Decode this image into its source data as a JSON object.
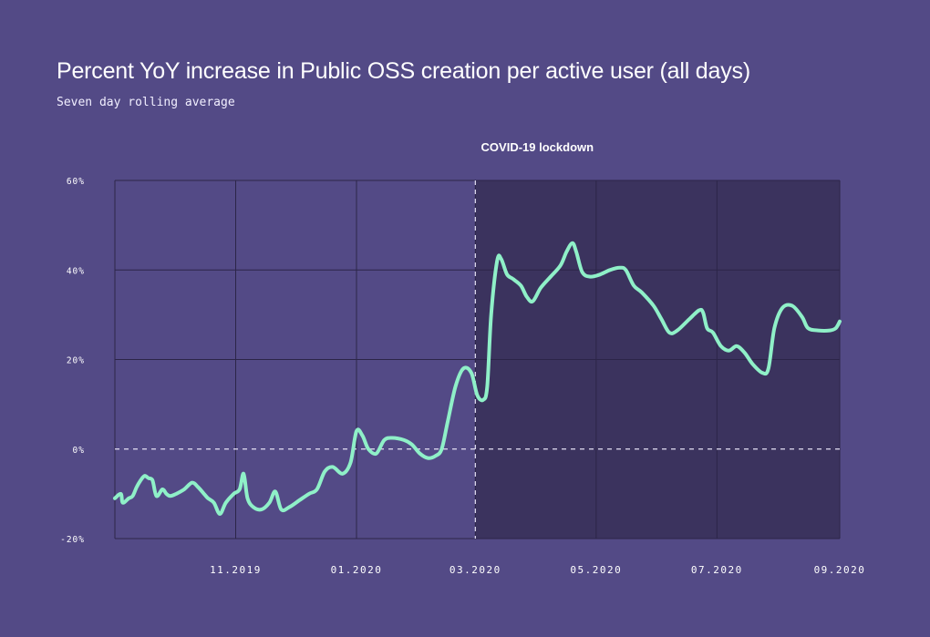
{
  "chart_data": {
    "type": "line",
    "title": "Percent YoY increase in Public OSS creation per active user (all days)",
    "subtitle": "Seven day rolling average",
    "xlabel": "",
    "ylabel": "",
    "ylim": [
      -20,
      60
    ],
    "xlim": [
      "2019-09-01",
      "2020-09-01"
    ],
    "grid": true,
    "y_ticks": [
      {
        "value": 60,
        "label": "60%"
      },
      {
        "value": 40,
        "label": "40%"
      },
      {
        "value": 20,
        "label": "20%"
      },
      {
        "value": 0,
        "label": "0%"
      },
      {
        "value": -20,
        "label": "-20%"
      }
    ],
    "x_ticks": [
      {
        "date": "2019-11-01",
        "label": "11.2019"
      },
      {
        "date": "2020-01-01",
        "label": "01.2020"
      },
      {
        "date": "2020-03-01",
        "label": "03.2020"
      },
      {
        "date": "2020-05-01",
        "label": "05.2020"
      },
      {
        "date": "2020-07-01",
        "label": "07.2020"
      },
      {
        "date": "2020-09-01",
        "label": "09.2020"
      }
    ],
    "annotation": {
      "label": "COVID-19 lockdown",
      "start": "2020-03-01",
      "end": "2020-09-01",
      "shade_color": "#3b335e"
    },
    "series": [
      {
        "color": "#8ff0c8",
        "points": [
          [
            "2019-09-01",
            -11
          ],
          [
            "2019-09-04",
            -10
          ],
          [
            "2019-09-05",
            -12
          ],
          [
            "2019-09-08",
            -11
          ],
          [
            "2019-09-10",
            -10.5
          ],
          [
            "2019-09-12",
            -8.5
          ],
          [
            "2019-09-14",
            -7
          ],
          [
            "2019-09-16",
            -6
          ],
          [
            "2019-09-18",
            -6.5
          ],
          [
            "2019-09-20",
            -7
          ],
          [
            "2019-09-22",
            -10.5
          ],
          [
            "2019-09-25",
            -9
          ],
          [
            "2019-09-27",
            -10
          ],
          [
            "2019-09-29",
            -10.5
          ],
          [
            "2019-10-02",
            -10
          ],
          [
            "2019-10-06",
            -9
          ],
          [
            "2019-10-10",
            -7.5
          ],
          [
            "2019-10-13",
            -8.5
          ],
          [
            "2019-10-16",
            -10
          ],
          [
            "2019-10-18",
            -11
          ],
          [
            "2019-10-21",
            -12
          ],
          [
            "2019-10-24",
            -14.5
          ],
          [
            "2019-10-27",
            -12
          ],
          [
            "2019-10-31",
            -10
          ],
          [
            "2019-11-03",
            -9
          ],
          [
            "2019-11-05",
            -5.5
          ],
          [
            "2019-11-07",
            -11
          ],
          [
            "2019-11-10",
            -13
          ],
          [
            "2019-11-14",
            -13.5
          ],
          [
            "2019-11-18",
            -12
          ],
          [
            "2019-11-21",
            -9.5
          ],
          [
            "2019-11-24",
            -13.5
          ],
          [
            "2019-11-28",
            -13
          ],
          [
            "2019-12-03",
            -11.5
          ],
          [
            "2019-12-08",
            -10
          ],
          [
            "2019-12-12",
            -9
          ],
          [
            "2019-12-16",
            -5
          ],
          [
            "2019-12-20",
            -4
          ],
          [
            "2019-12-25",
            -5.5
          ],
          [
            "2019-12-29",
            -3
          ],
          [
            "2020-01-01",
            4
          ],
          [
            "2020-01-04",
            3
          ],
          [
            "2020-01-07",
            0
          ],
          [
            "2020-01-11",
            -1
          ],
          [
            "2020-01-15",
            2
          ],
          [
            "2020-01-19",
            2.5
          ],
          [
            "2020-01-25",
            2
          ],
          [
            "2020-01-29",
            1
          ],
          [
            "2020-02-02",
            -1
          ],
          [
            "2020-02-06",
            -2
          ],
          [
            "2020-02-10",
            -1.5
          ],
          [
            "2020-02-13",
            0
          ],
          [
            "2020-02-16",
            6
          ],
          [
            "2020-02-20",
            14
          ],
          [
            "2020-02-24",
            18
          ],
          [
            "2020-02-28",
            17
          ],
          [
            "2020-03-02",
            12
          ],
          [
            "2020-03-05",
            11
          ],
          [
            "2020-03-07",
            14
          ],
          [
            "2020-03-09",
            30
          ],
          [
            "2020-03-12",
            42
          ],
          [
            "2020-03-14",
            42.5
          ],
          [
            "2020-03-17",
            39
          ],
          [
            "2020-03-20",
            38
          ],
          [
            "2020-03-24",
            36.5
          ],
          [
            "2020-03-27",
            34
          ],
          [
            "2020-03-30",
            33
          ],
          [
            "2020-04-03",
            36
          ],
          [
            "2020-04-08",
            38.5
          ],
          [
            "2020-04-13",
            41
          ],
          [
            "2020-04-16",
            44
          ],
          [
            "2020-04-19",
            46
          ],
          [
            "2020-04-21",
            44
          ],
          [
            "2020-04-24",
            39.5
          ],
          [
            "2020-04-28",
            38.5
          ],
          [
            "2020-05-03",
            39
          ],
          [
            "2020-05-08",
            40
          ],
          [
            "2020-05-13",
            40.5
          ],
          [
            "2020-05-16",
            40
          ],
          [
            "2020-05-20",
            36.5
          ],
          [
            "2020-05-24",
            35
          ],
          [
            "2020-05-30",
            32
          ],
          [
            "2020-06-03",
            29
          ],
          [
            "2020-06-07",
            26
          ],
          [
            "2020-06-11",
            26.5
          ],
          [
            "2020-06-17",
            29
          ],
          [
            "2020-06-22",
            31
          ],
          [
            "2020-06-24",
            30.5
          ],
          [
            "2020-06-26",
            27
          ],
          [
            "2020-06-29",
            26
          ],
          [
            "2020-07-03",
            23
          ],
          [
            "2020-07-07",
            22
          ],
          [
            "2020-07-11",
            23
          ],
          [
            "2020-07-15",
            21.5
          ],
          [
            "2020-07-19",
            19
          ],
          [
            "2020-07-24",
            17
          ],
          [
            "2020-07-27",
            18
          ],
          [
            "2020-07-30",
            27
          ],
          [
            "2020-08-03",
            31.5
          ],
          [
            "2020-08-08",
            32
          ],
          [
            "2020-08-13",
            29.5
          ],
          [
            "2020-08-16",
            27
          ],
          [
            "2020-08-21",
            26.5
          ],
          [
            "2020-08-27",
            26.5
          ],
          [
            "2020-08-30",
            27
          ],
          [
            "2020-09-01",
            28.5
          ]
        ]
      }
    ]
  }
}
